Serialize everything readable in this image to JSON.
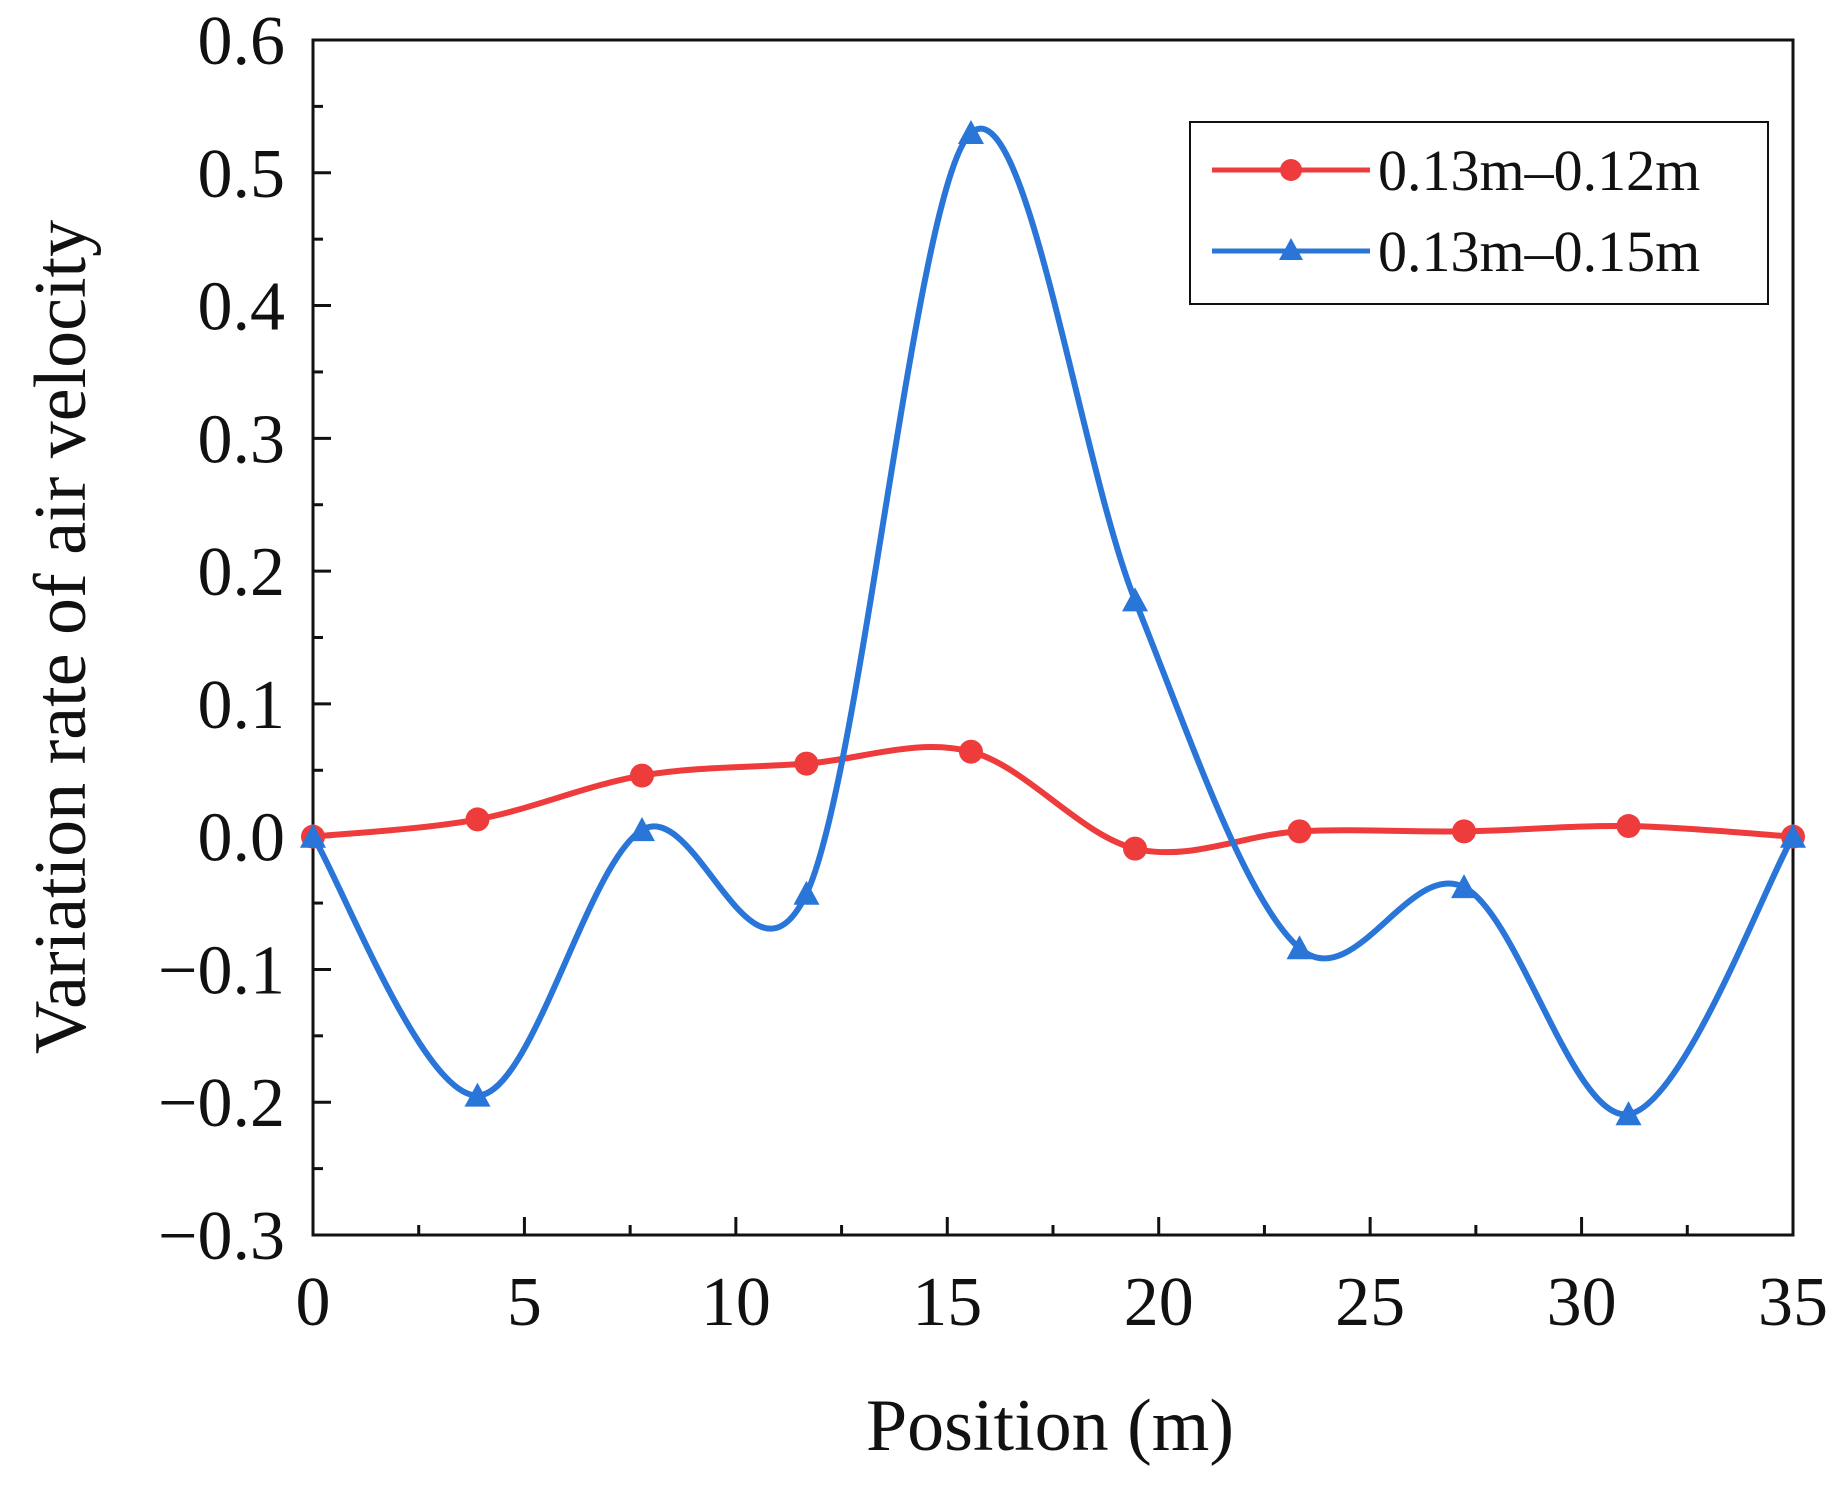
{
  "chart_data": {
    "type": "line",
    "title": "",
    "xlabel": "Position (m)",
    "ylabel": "Variation rate of air velocity",
    "xlim": [
      0,
      35
    ],
    "ylim": [
      -0.3,
      0.6
    ],
    "x_ticks": [
      0,
      5,
      10,
      15,
      20,
      25,
      30,
      35
    ],
    "x_tick_labels": [
      "0",
      "5",
      "10",
      "15",
      "20",
      "25",
      "30",
      "35"
    ],
    "y_ticks": [
      -0.3,
      -0.2,
      -0.1,
      0.0,
      0.1,
      0.2,
      0.3,
      0.4,
      0.5,
      0.6
    ],
    "y_tick_labels": [
      "−0.3",
      "−0.2",
      "−0.1",
      "0.0",
      "0.1",
      "0.2",
      "0.3",
      "0.4",
      "0.5",
      "0.6"
    ],
    "grid": false,
    "legend_position": "top-right",
    "series": [
      {
        "name": "0.13m–0.12m",
        "color": "#ee3b3b",
        "marker": "circle",
        "x": [
          0,
          3.89,
          7.78,
          11.67,
          15.56,
          19.44,
          23.33,
          27.22,
          31.11,
          35
        ],
        "y": [
          0.0,
          0.013,
          0.046,
          0.055,
          0.064,
          -0.009,
          0.004,
          0.004,
          0.008,
          0.0
        ]
      },
      {
        "name": "0.13m–0.15m",
        "color": "#2a75d8",
        "marker": "triangle",
        "x": [
          0,
          3.89,
          7.78,
          11.67,
          15.56,
          19.44,
          23.33,
          27.22,
          31.11,
          35
        ],
        "y": [
          0.0,
          -0.195,
          0.005,
          -0.043,
          0.53,
          0.178,
          -0.084,
          -0.038,
          -0.209,
          0.0
        ]
      }
    ]
  }
}
